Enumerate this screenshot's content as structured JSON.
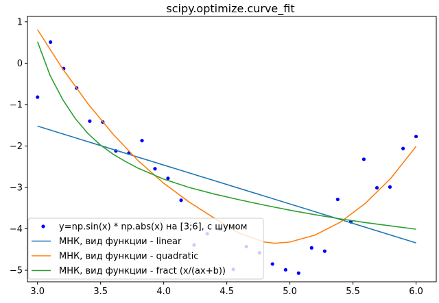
{
  "chart_data": {
    "type": "line",
    "title": "scipy.optimize.curve_fit",
    "xlabel": "",
    "ylabel": "",
    "xlim": [
      2.92,
      6.16
    ],
    "ylim": [
      -5.28,
      1.13
    ],
    "xticks": [
      3.0,
      3.5,
      4.0,
      4.5,
      5.0,
      5.5,
      6.0
    ],
    "xtick_labels": [
      "3.0",
      "3.5",
      "4.0",
      "4.5",
      "5.0",
      "5.5",
      "6.0"
    ],
    "yticks": [
      1,
      0,
      -1,
      -2,
      -3,
      -4,
      -5
    ],
    "ytick_labels": [
      "1",
      "0",
      "−1",
      "−2",
      "−3",
      "−4",
      "−5"
    ],
    "legend_position": "lower-left",
    "grid": false,
    "scatter": {
      "name": "y=np.sin(x) * np.abs(x) на [3;6], с шумом",
      "color": "#0000ff",
      "points": [
        [
          3.0,
          -0.82
        ],
        [
          3.103,
          0.51
        ],
        [
          3.207,
          -0.13
        ],
        [
          3.31,
          -0.6
        ],
        [
          3.414,
          -1.4
        ],
        [
          3.517,
          -1.42
        ],
        [
          3.621,
          -2.12
        ],
        [
          3.724,
          -2.17
        ],
        [
          3.828,
          -1.87
        ],
        [
          3.931,
          -2.55
        ],
        [
          4.034,
          -2.78
        ],
        [
          4.138,
          -3.31
        ],
        [
          4.241,
          -4.39
        ],
        [
          4.345,
          -4.12
        ],
        [
          4.448,
          -4.01
        ],
        [
          4.552,
          -4.98
        ],
        [
          4.655,
          -4.43
        ],
        [
          4.759,
          -4.58
        ],
        [
          4.862,
          -4.85
        ],
        [
          4.966,
          -4.99
        ],
        [
          5.069,
          -5.07
        ],
        [
          5.172,
          -4.46
        ],
        [
          5.276,
          -4.54
        ],
        [
          5.379,
          -3.29
        ],
        [
          5.483,
          -3.83
        ],
        [
          5.586,
          -2.32
        ],
        [
          5.69,
          -3.01
        ],
        [
          5.793,
          -2.99
        ],
        [
          5.897,
          -2.06
        ],
        [
          6.0,
          -1.77
        ]
      ]
    },
    "series": [
      {
        "name": "МНК, вид функции - linear",
        "color": "#1f77b4",
        "x": [
          3.0,
          6.0
        ],
        "y": [
          -1.52,
          -4.34
        ]
      },
      {
        "name": "МНК, вид функции - quadratic",
        "color": "#ff7f0e",
        "x": [
          3.0,
          3.2,
          3.4,
          3.6,
          3.8,
          4.0,
          4.2,
          4.4,
          4.6,
          4.8,
          4.88,
          5.0,
          5.2,
          5.4,
          5.6,
          5.8,
          6.0
        ],
        "y": [
          0.81,
          -0.14,
          -0.98,
          -1.72,
          -2.36,
          -2.9,
          -3.35,
          -3.74,
          -4.11,
          -4.32,
          -4.35,
          -4.32,
          -4.15,
          -3.84,
          -3.38,
          -2.78,
          -2.01
        ]
      },
      {
        "name": "МНК, вид функции - fract (x/(ax+b))",
        "color": "#2ca02c",
        "x": [
          3.0,
          3.1,
          3.2,
          3.3,
          3.4,
          3.5,
          3.6,
          3.7,
          3.8,
          4.0,
          4.2,
          4.4,
          4.6,
          4.8,
          5.0,
          5.2,
          5.4,
          5.6,
          5.8,
          6.0
        ],
        "y": [
          0.52,
          -0.3,
          -0.88,
          -1.34,
          -1.7,
          -1.98,
          -2.2,
          -2.38,
          -2.54,
          -2.8,
          -3.0,
          -3.16,
          -3.3,
          -3.43,
          -3.55,
          -3.66,
          -3.76,
          -3.85,
          -3.93,
          -4.01
        ]
      }
    ]
  }
}
